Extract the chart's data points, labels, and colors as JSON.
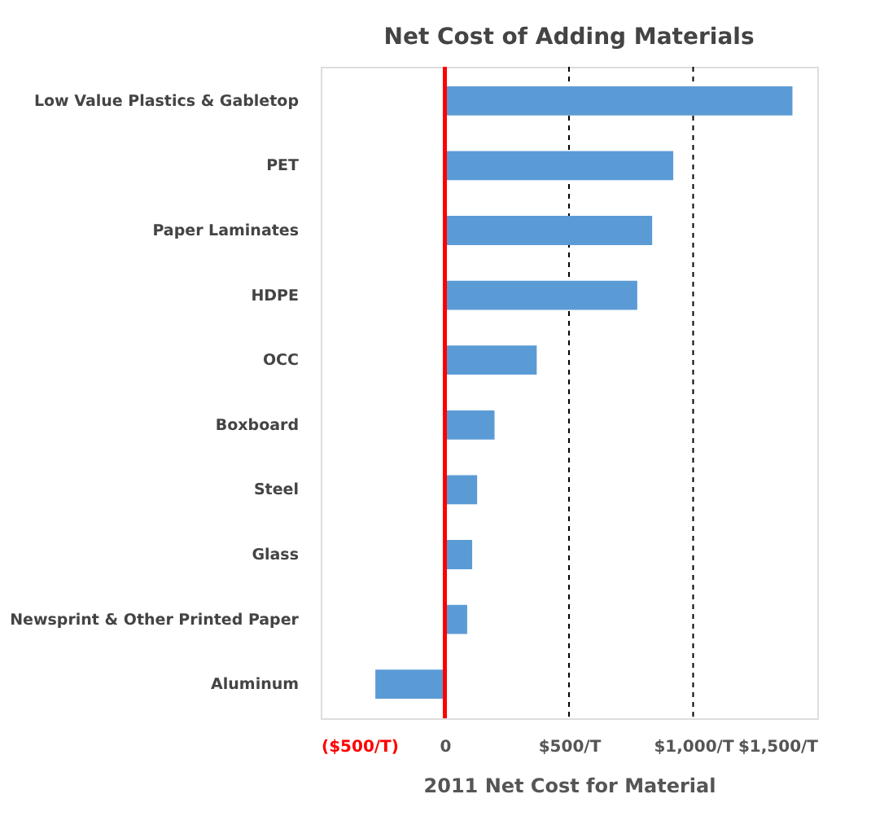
{
  "chart_data": {
    "type": "bar",
    "orientation": "horizontal",
    "title": "Net Cost of Adding Materials",
    "xlabel": "2011 Net Cost for Material",
    "categories": [
      "Low Value Plastics & Gabletop",
      "PET",
      "Paper Laminates",
      "HDPE",
      "OCC",
      "Boxboard",
      "Steel",
      "Glass",
      "Newsprint & Other Printed Paper",
      "Aluminum"
    ],
    "values": [
      1400,
      920,
      835,
      775,
      370,
      200,
      130,
      110,
      90,
      -280
    ],
    "color": "#5b9bd5",
    "xlim": [
      -500,
      1500
    ],
    "xticks": [
      {
        "value": -500,
        "label": "($500/T)"
      },
      0,
      {
        "value": 500,
        "label": "$500/T"
      },
      {
        "value": 1000,
        "label": "$1,000/T"
      },
      {
        "value": 1500,
        "label": "$1,500/T"
      }
    ],
    "grid": "x",
    "line_style": "dashed",
    "ref_lines": [
      {
        "axis": "x",
        "value": 0,
        "color": "#ff0000"
      }
    ]
  }
}
